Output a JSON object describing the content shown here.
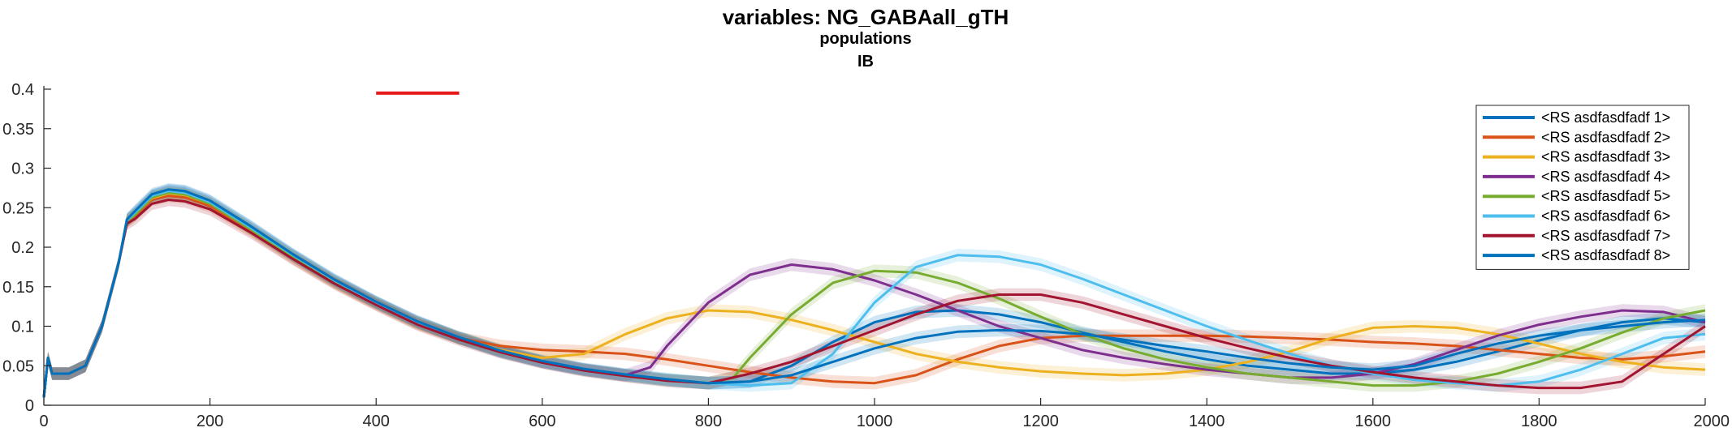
{
  "chart_data": {
    "type": "line",
    "title": "variables: NG_GABAall_gTH",
    "subtitle": "populations",
    "subtitle2": "IB",
    "xlabel": "",
    "ylabel": "",
    "xlim": [
      0,
      2000
    ],
    "ylim": [
      0,
      0.4
    ],
    "xticks": [
      0,
      200,
      400,
      600,
      800,
      1000,
      1200,
      1400,
      1600,
      1800,
      2000
    ],
    "yticks": [
      0,
      0.05,
      0.1,
      0.15,
      0.2,
      0.25,
      0.3,
      0.35,
      0.4
    ],
    "xtick_labels": [
      "0",
      "200",
      "400",
      "600",
      "800",
      "1000",
      "1200",
      "1400",
      "1600",
      "1800",
      "2000"
    ],
    "ytick_labels": [
      "0",
      "0.05",
      "0.1",
      "0.15",
      "0.2",
      "0.25",
      "0.3",
      "0.35",
      "0.4"
    ],
    "grid": false,
    "legend_position": "top-right",
    "shaded_error_bands": true,
    "annotation_bar": {
      "x": [
        400,
        500
      ],
      "y": 0.395,
      "color": "#e6191a"
    },
    "series": [
      {
        "name": "<RS asdfasdfadf 1>",
        "color": "#0072bd",
        "x": [
          0,
          5,
          10,
          30,
          50,
          70,
          90,
          100,
          110,
          130,
          150,
          170,
          200,
          250,
          300,
          350,
          400,
          450,
          500,
          550,
          600,
          650,
          700,
          750,
          800,
          850,
          900,
          950,
          1000,
          1050,
          1100,
          1150,
          1200,
          1250,
          1300,
          1350,
          1400,
          1450,
          1500,
          1550,
          1600,
          1650,
          1700,
          1750,
          1800,
          1850,
          1900,
          1950,
          2000
        ],
        "y": [
          0.01,
          0.06,
          0.04,
          0.04,
          0.05,
          0.1,
          0.18,
          0.235,
          0.245,
          0.265,
          0.272,
          0.27,
          0.258,
          0.225,
          0.19,
          0.158,
          0.13,
          0.105,
          0.085,
          0.068,
          0.055,
          0.045,
          0.038,
          0.032,
          0.028,
          0.03,
          0.05,
          0.08,
          0.105,
          0.118,
          0.12,
          0.115,
          0.105,
          0.092,
          0.08,
          0.068,
          0.058,
          0.05,
          0.045,
          0.04,
          0.04,
          0.045,
          0.055,
          0.068,
          0.082,
          0.095,
          0.105,
          0.11,
          0.105
        ]
      },
      {
        "name": "<RS asdfasdfadf 2>",
        "color": "#d95319",
        "x": [
          0,
          5,
          10,
          30,
          50,
          70,
          90,
          100,
          110,
          130,
          150,
          170,
          200,
          250,
          300,
          350,
          400,
          450,
          500,
          550,
          600,
          650,
          700,
          750,
          800,
          850,
          900,
          950,
          1000,
          1050,
          1100,
          1150,
          1200,
          1250,
          1300,
          1350,
          1400,
          1450,
          1500,
          1550,
          1600,
          1650,
          1700,
          1750,
          1800,
          1850,
          1900,
          1950,
          2000
        ],
        "y": [
          0.01,
          0.06,
          0.04,
          0.04,
          0.05,
          0.1,
          0.18,
          0.232,
          0.24,
          0.26,
          0.265,
          0.263,
          0.252,
          0.22,
          0.186,
          0.155,
          0.128,
          0.103,
          0.085,
          0.075,
          0.07,
          0.068,
          0.065,
          0.058,
          0.05,
          0.042,
          0.035,
          0.03,
          0.028,
          0.038,
          0.058,
          0.075,
          0.085,
          0.088,
          0.088,
          0.088,
          0.088,
          0.087,
          0.085,
          0.083,
          0.08,
          0.078,
          0.075,
          0.07,
          0.065,
          0.06,
          0.058,
          0.062,
          0.068
        ]
      },
      {
        "name": "<RS asdfasdfadf 3>",
        "color": "#edb120",
        "x": [
          0,
          5,
          10,
          30,
          50,
          70,
          90,
          100,
          110,
          130,
          150,
          170,
          200,
          250,
          300,
          350,
          400,
          450,
          500,
          550,
          600,
          650,
          700,
          750,
          800,
          850,
          900,
          950,
          1000,
          1050,
          1100,
          1150,
          1200,
          1250,
          1300,
          1350,
          1400,
          1450,
          1500,
          1550,
          1600,
          1650,
          1700,
          1750,
          1800,
          1850,
          1900,
          1950,
          2000
        ],
        "y": [
          0.01,
          0.06,
          0.04,
          0.04,
          0.05,
          0.1,
          0.18,
          0.233,
          0.242,
          0.262,
          0.268,
          0.266,
          0.255,
          0.222,
          0.188,
          0.156,
          0.129,
          0.104,
          0.085,
          0.07,
          0.06,
          0.065,
          0.09,
          0.11,
          0.12,
          0.118,
          0.108,
          0.095,
          0.08,
          0.065,
          0.055,
          0.048,
          0.043,
          0.04,
          0.038,
          0.04,
          0.045,
          0.055,
          0.068,
          0.085,
          0.098,
          0.1,
          0.098,
          0.09,
          0.078,
          0.065,
          0.055,
          0.048,
          0.045
        ]
      },
      {
        "name": "<RS asdfasdfadf 4>",
        "color": "#7e2f8e",
        "x": [
          0,
          5,
          10,
          30,
          50,
          70,
          90,
          100,
          110,
          130,
          150,
          170,
          200,
          250,
          300,
          350,
          400,
          450,
          500,
          550,
          600,
          650,
          700,
          730,
          750,
          800,
          850,
          900,
          950,
          1000,
          1050,
          1100,
          1150,
          1200,
          1250,
          1300,
          1350,
          1400,
          1450,
          1500,
          1550,
          1600,
          1650,
          1700,
          1750,
          1800,
          1850,
          1900,
          1950,
          2000
        ],
        "y": [
          0.01,
          0.06,
          0.04,
          0.04,
          0.05,
          0.1,
          0.18,
          0.234,
          0.243,
          0.264,
          0.27,
          0.268,
          0.256,
          0.223,
          0.189,
          0.157,
          0.13,
          0.105,
          0.085,
          0.068,
          0.055,
          0.045,
          0.038,
          0.048,
          0.075,
          0.13,
          0.165,
          0.178,
          0.172,
          0.158,
          0.14,
          0.12,
          0.1,
          0.085,
          0.07,
          0.06,
          0.052,
          0.045,
          0.04,
          0.035,
          0.035,
          0.04,
          0.052,
          0.07,
          0.088,
          0.102,
          0.112,
          0.12,
          0.118,
          0.105
        ]
      },
      {
        "name": "<RS asdfasdfadf 5>",
        "color": "#77ac30",
        "x": [
          0,
          5,
          10,
          30,
          50,
          70,
          90,
          100,
          110,
          130,
          150,
          170,
          200,
          250,
          300,
          350,
          400,
          450,
          500,
          550,
          600,
          650,
          700,
          750,
          800,
          830,
          850,
          900,
          950,
          1000,
          1050,
          1100,
          1150,
          1200,
          1250,
          1300,
          1350,
          1400,
          1450,
          1500,
          1550,
          1600,
          1650,
          1700,
          1750,
          1800,
          1850,
          1900,
          1950,
          2000
        ],
        "y": [
          0.01,
          0.06,
          0.04,
          0.04,
          0.05,
          0.1,
          0.18,
          0.233,
          0.241,
          0.263,
          0.269,
          0.267,
          0.255,
          0.222,
          0.188,
          0.156,
          0.129,
          0.104,
          0.085,
          0.068,
          0.055,
          0.045,
          0.038,
          0.032,
          0.028,
          0.035,
          0.06,
          0.115,
          0.155,
          0.17,
          0.168,
          0.155,
          0.135,
          0.112,
          0.09,
          0.072,
          0.058,
          0.048,
          0.04,
          0.035,
          0.03,
          0.025,
          0.025,
          0.03,
          0.04,
          0.055,
          0.072,
          0.092,
          0.11,
          0.12
        ]
      },
      {
        "name": "<RS asdfasdfadf 6>",
        "color": "#4dbeee",
        "x": [
          0,
          5,
          10,
          30,
          50,
          70,
          90,
          100,
          110,
          130,
          150,
          170,
          200,
          250,
          300,
          350,
          400,
          450,
          500,
          550,
          600,
          650,
          700,
          750,
          800,
          850,
          900,
          950,
          1000,
          1050,
          1100,
          1150,
          1200,
          1250,
          1300,
          1350,
          1400,
          1450,
          1500,
          1550,
          1600,
          1650,
          1700,
          1750,
          1800,
          1850,
          1900,
          1950,
          2000
        ],
        "y": [
          0.01,
          0.06,
          0.04,
          0.04,
          0.05,
          0.1,
          0.18,
          0.234,
          0.244,
          0.265,
          0.271,
          0.269,
          0.257,
          0.224,
          0.19,
          0.158,
          0.13,
          0.105,
          0.085,
          0.068,
          0.055,
          0.045,
          0.038,
          0.032,
          0.028,
          0.025,
          0.028,
          0.065,
          0.13,
          0.175,
          0.19,
          0.188,
          0.178,
          0.16,
          0.14,
          0.12,
          0.1,
          0.082,
          0.065,
          0.05,
          0.04,
          0.032,
          0.028,
          0.025,
          0.03,
          0.045,
          0.065,
          0.085,
          0.09
        ]
      },
      {
        "name": "<RS asdfasdfadf 7>",
        "color": "#a2142f",
        "x": [
          0,
          5,
          10,
          30,
          50,
          70,
          90,
          100,
          110,
          130,
          150,
          170,
          200,
          250,
          300,
          350,
          400,
          450,
          500,
          550,
          600,
          650,
          700,
          750,
          800,
          850,
          900,
          950,
          1000,
          1050,
          1100,
          1150,
          1200,
          1250,
          1300,
          1350,
          1400,
          1450,
          1500,
          1550,
          1600,
          1650,
          1700,
          1750,
          1800,
          1850,
          1900,
          1950,
          2000
        ],
        "y": [
          0.01,
          0.06,
          0.04,
          0.04,
          0.05,
          0.1,
          0.18,
          0.23,
          0.236,
          0.255,
          0.26,
          0.258,
          0.248,
          0.218,
          0.185,
          0.154,
          0.127,
          0.102,
          0.083,
          0.067,
          0.054,
          0.044,
          0.037,
          0.031,
          0.028,
          0.04,
          0.055,
          0.075,
          0.095,
          0.115,
          0.132,
          0.14,
          0.14,
          0.13,
          0.115,
          0.1,
          0.085,
          0.072,
          0.06,
          0.05,
          0.042,
          0.035,
          0.03,
          0.025,
          0.022,
          0.022,
          0.03,
          0.065,
          0.1
        ]
      },
      {
        "name": "<RS asdfasdfadf 8>",
        "color": "#0072bd",
        "x": [
          0,
          5,
          10,
          30,
          50,
          70,
          90,
          100,
          110,
          130,
          150,
          170,
          200,
          250,
          300,
          350,
          400,
          450,
          500,
          550,
          600,
          650,
          700,
          750,
          800,
          850,
          900,
          950,
          1000,
          1050,
          1100,
          1150,
          1200,
          1250,
          1300,
          1350,
          1400,
          1450,
          1500,
          1550,
          1600,
          1650,
          1700,
          1750,
          1800,
          1850,
          1900,
          1950,
          2000
        ],
        "y": [
          0.01,
          0.06,
          0.04,
          0.04,
          0.05,
          0.1,
          0.18,
          0.235,
          0.246,
          0.267,
          0.273,
          0.271,
          0.259,
          0.226,
          0.191,
          0.159,
          0.131,
          0.106,
          0.086,
          0.069,
          0.056,
          0.046,
          0.039,
          0.033,
          0.028,
          0.03,
          0.038,
          0.055,
          0.072,
          0.085,
          0.093,
          0.095,
          0.094,
          0.09,
          0.083,
          0.075,
          0.068,
          0.06,
          0.053,
          0.048,
          0.045,
          0.05,
          0.065,
          0.078,
          0.088,
          0.095,
          0.1,
          0.105,
          0.108
        ]
      }
    ]
  }
}
